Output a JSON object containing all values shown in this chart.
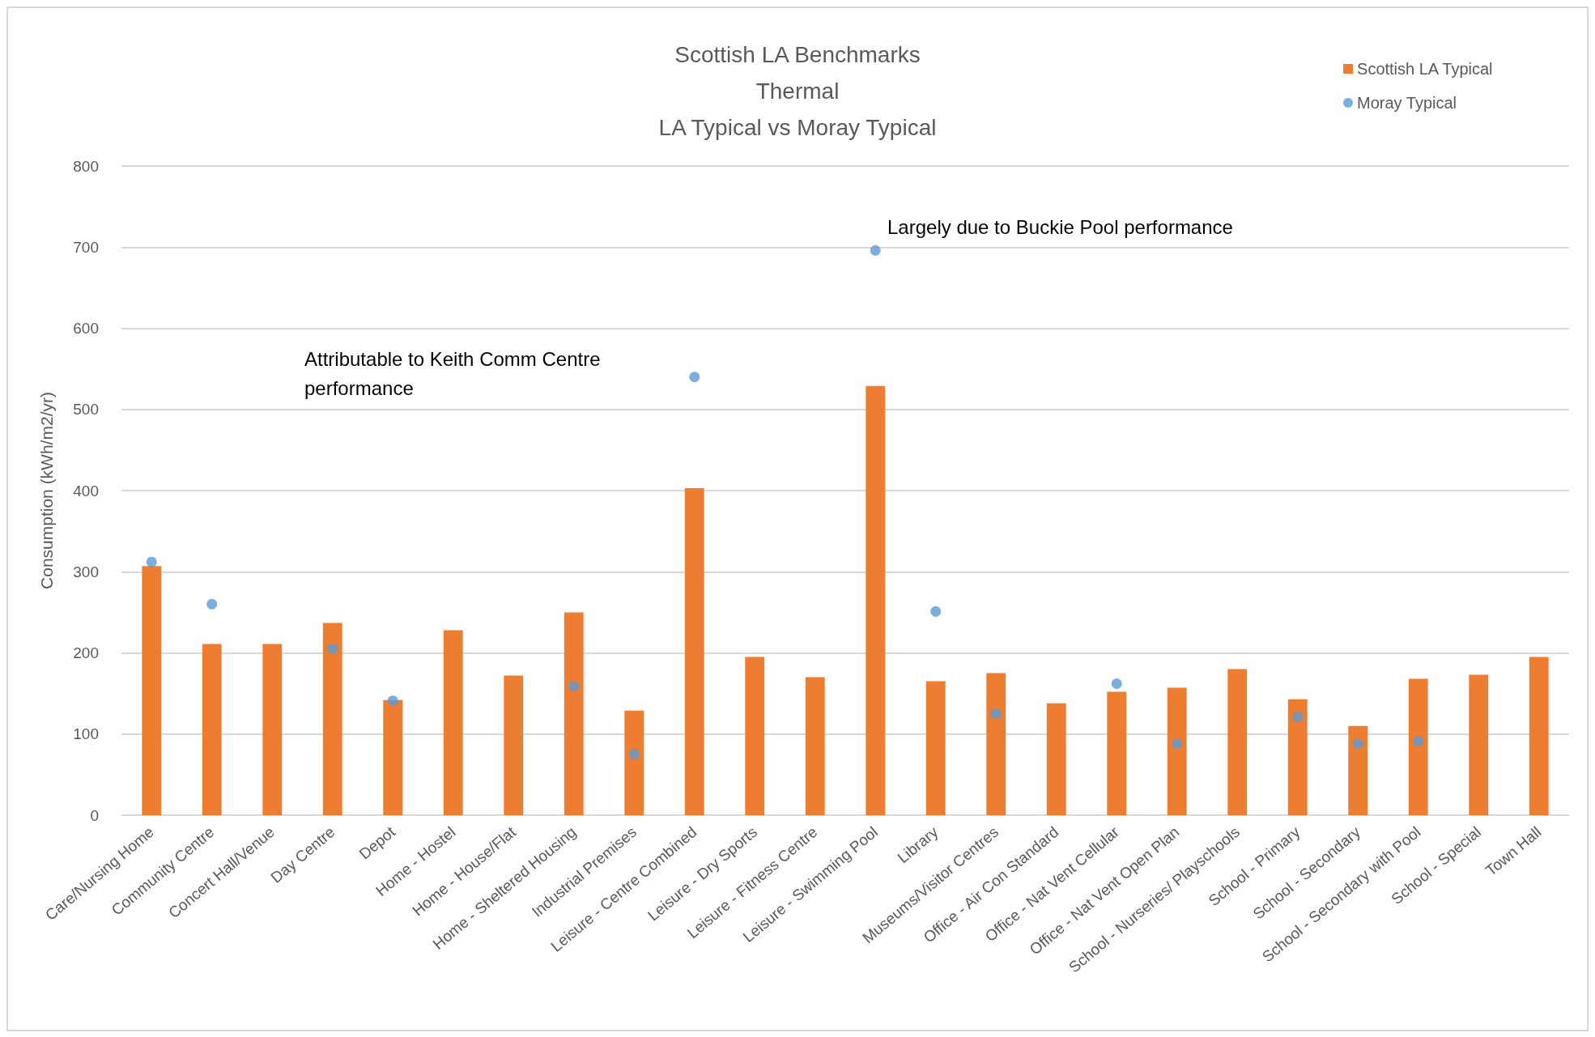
{
  "chart_data": {
    "type": "bar",
    "title": "Scottish LA Benchmarks",
    "subtitle": "Thermal\nLA Typical vs Moray Typical",
    "ylabel": "Consumption (kWh/m2/yr)",
    "categories": [
      "Care/Nursing Home",
      "Community Centre",
      "Concert Hall/Venue",
      "Day Centre",
      "Depot",
      "Home - Hostel",
      "Home - House/Flat",
      "Home - Sheltered Housing",
      "Industrial Premises",
      "Leisure - Centre Combined",
      "Leisure - Dry Sports",
      "Leisure - Fitness Centre",
      "Leisure - Swimming Pool",
      "Library",
      "Museums/Visitor Centres",
      "Office - Air Con Standard",
      "Office - Nat Vent Cellular",
      "Office - Nat Vent Open Plan",
      "School - Nurseries/ Playschools",
      "School - Primary",
      "School - Secondary",
      "School - Secondary with Pool",
      "School - Special",
      "Town Hall"
    ],
    "series": [
      {
        "name": "Scottish LA Typical",
        "color": "#ed7d31",
        "values": [
          307,
          211,
          211,
          237,
          142,
          228,
          172,
          250,
          129,
          403,
          195,
          170,
          529,
          165,
          175,
          138,
          152,
          157,
          180,
          143,
          110,
          168,
          173,
          195
        ]
      },
      {
        "name": "Moray Typical",
        "type": "scatter",
        "color": "#5b9bd5",
        "values": [
          312,
          260,
          null,
          205,
          141,
          null,
          null,
          159,
          75,
          540,
          null,
          null,
          696,
          251,
          125,
          null,
          162,
          88,
          null,
          121,
          88,
          91,
          null,
          null
        ]
      }
    ],
    "ylim": [
      0,
      800
    ],
    "yticks": [
      0,
      100,
      200,
      300,
      400,
      500,
      600,
      700,
      800
    ],
    "grid": "y",
    "legend": "top right",
    "marker": "circle",
    "annotations": [
      "Attributable to Keith Comm Centre performance",
      "Largely due to Buckie Pool performance"
    ]
  }
}
